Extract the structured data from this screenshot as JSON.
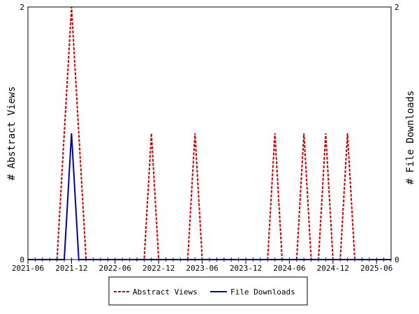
{
  "chart_data": {
    "type": "line",
    "x_tick_labels": [
      "2021-06",
      "2021-12",
      "2022-06",
      "2022-12",
      "2023-06",
      "2023-12",
      "2024-06",
      "2024-12",
      "2025-06"
    ],
    "y_left": {
      "label": "# Abstract Views",
      "range": [
        0,
        2
      ],
      "tick_labels": [
        "0",
        "2"
      ]
    },
    "y_right": {
      "label": "# File Downloads",
      "range": [
        0,
        2
      ],
      "tick_labels": [
        "0",
        "2"
      ]
    },
    "x_range": [
      "2021-06",
      "2025-08"
    ],
    "grid": false,
    "legend_position": "bottom",
    "series": [
      {
        "name": "Abstract Views",
        "color": "#cc0000",
        "style": "dashed",
        "axis": "left",
        "points": [
          [
            "2021-06",
            0
          ],
          [
            "2021-10",
            0
          ],
          [
            "2021-11",
            1
          ],
          [
            "2021-12",
            2
          ],
          [
            "2022-01",
            1
          ],
          [
            "2022-02",
            0
          ],
          [
            "2022-09",
            0
          ],
          [
            "2022-10",
            0
          ],
          [
            "2022-11",
            1
          ],
          [
            "2022-12",
            0
          ],
          [
            "2023-03",
            0
          ],
          [
            "2023-04",
            0
          ],
          [
            "2023-05",
            1
          ],
          [
            "2023-06",
            0
          ],
          [
            "2024-02",
            0
          ],
          [
            "2024-03",
            0
          ],
          [
            "2024-04",
            1
          ],
          [
            "2024-05",
            0
          ],
          [
            "2024-06",
            0
          ],
          [
            "2024-07",
            0
          ],
          [
            "2024-08",
            1
          ],
          [
            "2024-09",
            0
          ],
          [
            "2024-10",
            0
          ],
          [
            "2024-11",
            1
          ],
          [
            "2024-12",
            0
          ],
          [
            "2025-01",
            0
          ],
          [
            "2025-02",
            1
          ],
          [
            "2025-03",
            0
          ],
          [
            "2025-08",
            0
          ]
        ]
      },
      {
        "name": "File Downloads",
        "color": "#0000aa",
        "style": "solid",
        "axis": "right",
        "points": [
          [
            "2021-06",
            0
          ],
          [
            "2021-11",
            0
          ],
          [
            "2021-12",
            1
          ],
          [
            "2022-01",
            0
          ],
          [
            "2025-08",
            0
          ]
        ]
      }
    ]
  }
}
